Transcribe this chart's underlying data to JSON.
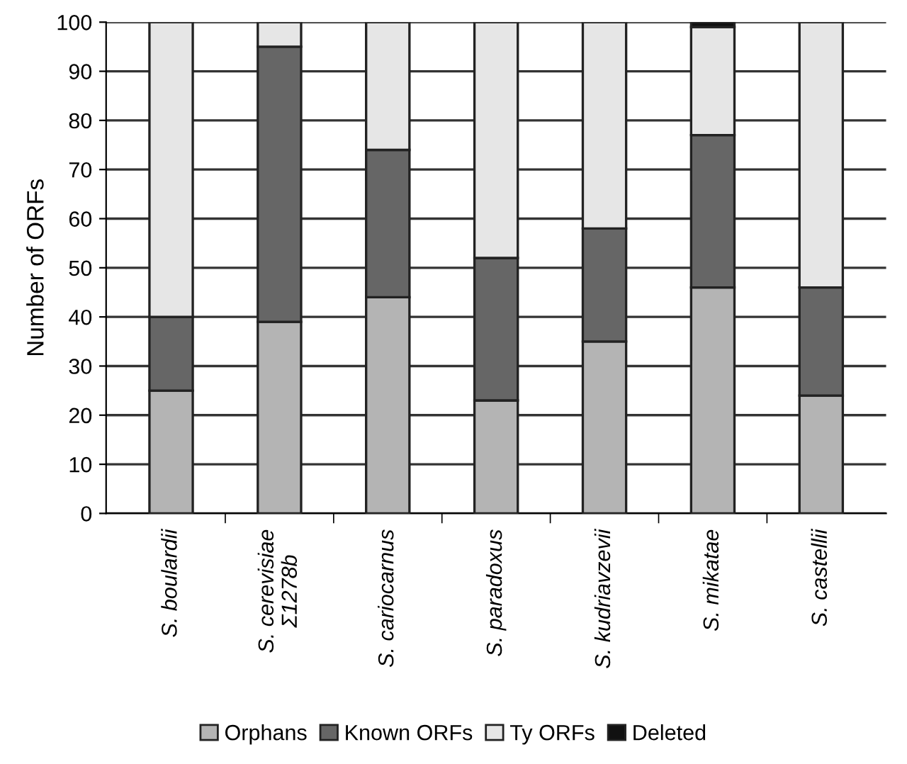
{
  "chart_data": {
    "type": "bar",
    "stacked": true,
    "ylabel": "Number of ORFs",
    "categories": [
      "S. boulardii",
      "S. cerevisiae\nΣ1278b",
      "S. cariocarnus",
      "S. paradoxus",
      "S. kudriavzevii",
      "S. mikatae",
      "S. castellii"
    ],
    "series": [
      {
        "name": "Orphans",
        "color": "#b4b4b4",
        "values": [
          25,
          39,
          44,
          23,
          35,
          46,
          24
        ]
      },
      {
        "name": "Known ORFs",
        "color": "#666666",
        "values": [
          15,
          56,
          30,
          29,
          23,
          31,
          22
        ]
      },
      {
        "name": "Ty ORFs",
        "color": "#e6e6e6",
        "values": [
          60,
          5,
          26,
          48,
          42,
          22,
          54
        ]
      },
      {
        "name": "Deleted",
        "color": "#111111",
        "values": [
          0,
          0,
          0,
          0,
          0,
          1,
          0
        ]
      }
    ],
    "ylim": [
      0,
      100
    ],
    "yticks": [
      0,
      10,
      20,
      30,
      40,
      50,
      60,
      70,
      80,
      90,
      100
    ],
    "grid": "y",
    "legend": "bottom"
  }
}
